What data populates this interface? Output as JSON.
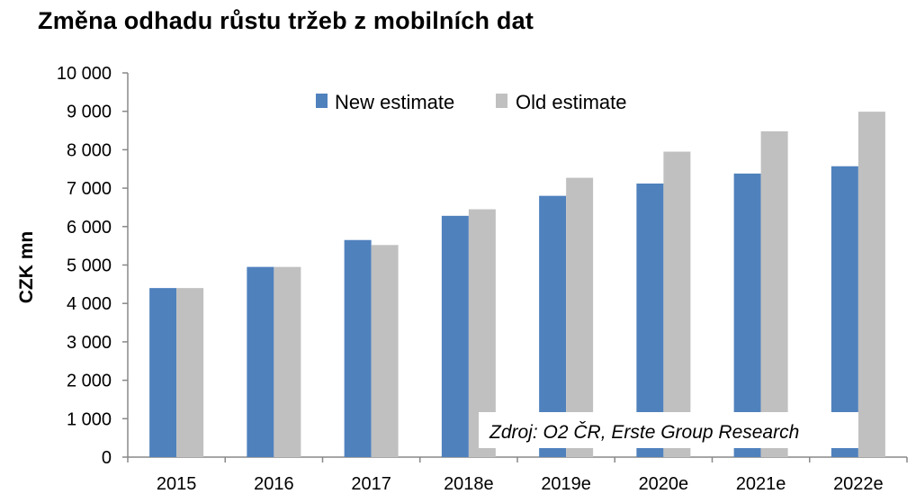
{
  "chart_data": {
    "type": "bar",
    "title": "Změna odhadu růstu tržeb z mobilních dat",
    "ylabel": "CZK mn",
    "xlabel": "",
    "categories": [
      "2015",
      "2016",
      "2017",
      "2018e",
      "2019e",
      "2020e",
      "2021e",
      "2022e"
    ],
    "series": [
      {
        "name": "New estimate",
        "color": "#4f81bd",
        "values": [
          4400,
          4950,
          5650,
          6280,
          6800,
          7120,
          7380,
          7570
        ]
      },
      {
        "name": "Old estimate",
        "color": "#c0c0c0",
        "values": [
          4400,
          4950,
          5520,
          6450,
          7270,
          7950,
          8480,
          8990
        ]
      }
    ],
    "ylim": [
      0,
      10000
    ],
    "yticks": [
      0,
      1000,
      2000,
      3000,
      4000,
      5000,
      6000,
      7000,
      8000,
      9000,
      10000
    ],
    "ytick_labels": [
      "0",
      "1 000",
      "2 000",
      "3 000",
      "4 000",
      "5 000",
      "6 000",
      "7 000",
      "8 000",
      "9 000",
      "10 000"
    ],
    "grid": false,
    "legend_position": "top-center",
    "annotation": "Zdroj: O2 ČR, Erste Group Research"
  }
}
